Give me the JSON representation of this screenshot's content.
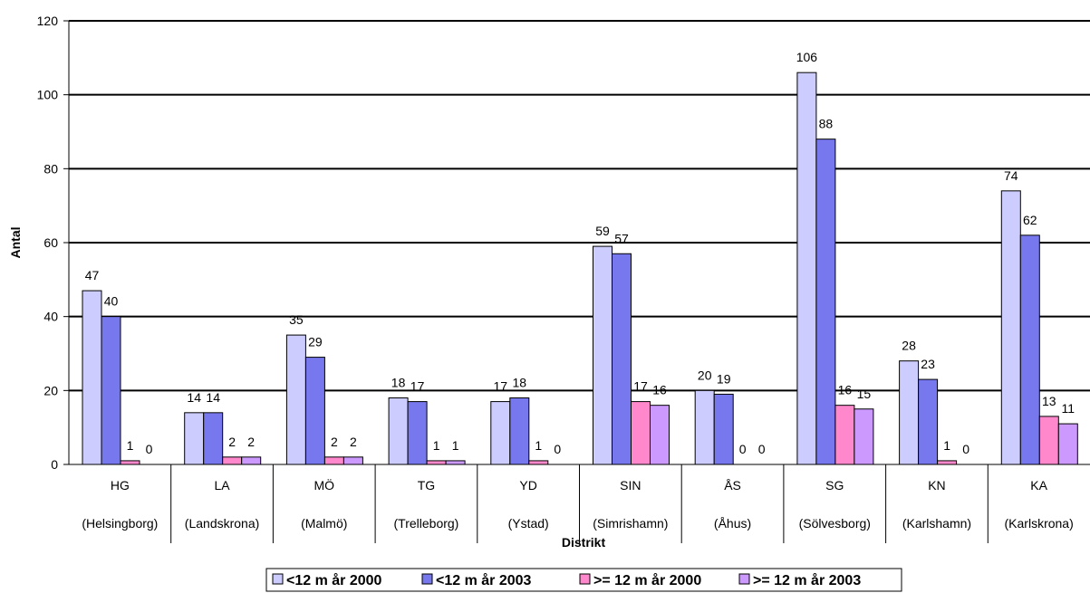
{
  "chart_data": {
    "type": "bar",
    "xlabel": "Distrikt",
    "ylabel": "Antal",
    "ylim": [
      0,
      120
    ],
    "yticks": [
      0,
      20,
      40,
      60,
      80,
      100,
      120
    ],
    "grid": true,
    "legend_position": "bottom",
    "categories": [
      {
        "code": "HG",
        "name": "(Helsingborg)"
      },
      {
        "code": "LA",
        "name": "(Landskrona)"
      },
      {
        "code": "MÖ",
        "name": "(Malmö)"
      },
      {
        "code": "TG",
        "name": "(Trelleborg)"
      },
      {
        "code": "YD",
        "name": "(Ystad)"
      },
      {
        "code": "SIN",
        "name": "(Simrishamn)"
      },
      {
        "code": "ÅS",
        "name": "(Åhus)"
      },
      {
        "code": "SG",
        "name": "(Sölvesborg)"
      },
      {
        "code": "KN",
        "name": "(Karlshamn)"
      },
      {
        "code": "KA",
        "name": "(Karlskrona)"
      }
    ],
    "series": [
      {
        "name": "<12 m år 2000",
        "color": "#ccccff",
        "values": [
          47,
          14,
          35,
          18,
          17,
          59,
          20,
          106,
          28,
          74
        ]
      },
      {
        "name": "<12 m år 2003",
        "color": "#7777ee",
        "values": [
          40,
          14,
          29,
          17,
          18,
          57,
          19,
          88,
          23,
          62
        ]
      },
      {
        "name": ">= 12 m år 2000",
        "color": "#ff88cc",
        "values": [
          1,
          2,
          2,
          1,
          1,
          17,
          0,
          16,
          1,
          13
        ]
      },
      {
        "name": ">= 12 m år 2003",
        "color": "#cc99ff",
        "values": [
          0,
          2,
          2,
          1,
          0,
          16,
          0,
          15,
          0,
          11
        ]
      }
    ]
  }
}
